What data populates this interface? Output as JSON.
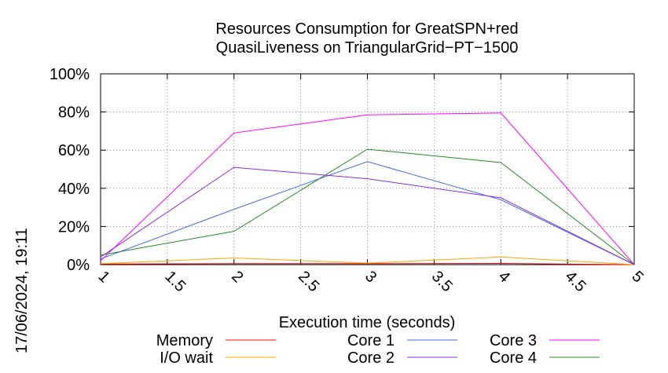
{
  "chart_data": {
    "type": "line",
    "title": "Resources Consumption for GreatSPN+red",
    "subtitle": "QuasiLiveness on TriangularGrid−PT−1500",
    "xlabel": "Execution time (seconds)",
    "ylabel": "",
    "xlim": [
      1,
      5
    ],
    "ylim": [
      0,
      100
    ],
    "xticks": [
      "1",
      "1.5",
      "2",
      "2.5",
      "3",
      "3.5",
      "4",
      "4.5",
      "5"
    ],
    "yticks": [
      "0%",
      "20%",
      "40%",
      "60%",
      "80%",
      "100%"
    ],
    "grid": true,
    "legend_position": "bottom",
    "x": [
      1,
      2,
      3,
      4,
      5
    ],
    "series": [
      {
        "name": "Memory",
        "color": "#ff0000",
        "values": [
          0.3,
          0.5,
          0.5,
          0.6,
          0
        ]
      },
      {
        "name": "I/O wait",
        "color": "#ffa500",
        "values": [
          0.5,
          3.5,
          0.8,
          4,
          0
        ]
      },
      {
        "name": "Core 1",
        "color": "#4169e1",
        "values": [
          3,
          29,
          54,
          34,
          0
        ]
      },
      {
        "name": "Core 2",
        "color": "#8a2be2",
        "values": [
          4,
          51,
          45,
          35,
          0
        ]
      },
      {
        "name": "Core 3",
        "color": "#ff00ff",
        "values": [
          2,
          69,
          78.5,
          79.5,
          0
        ]
      },
      {
        "name": "Core 4",
        "color": "#228b22",
        "values": [
          5,
          17.5,
          60.5,
          53.5,
          0
        ]
      }
    ]
  },
  "timestamp": "17/06/2024, 19:11"
}
